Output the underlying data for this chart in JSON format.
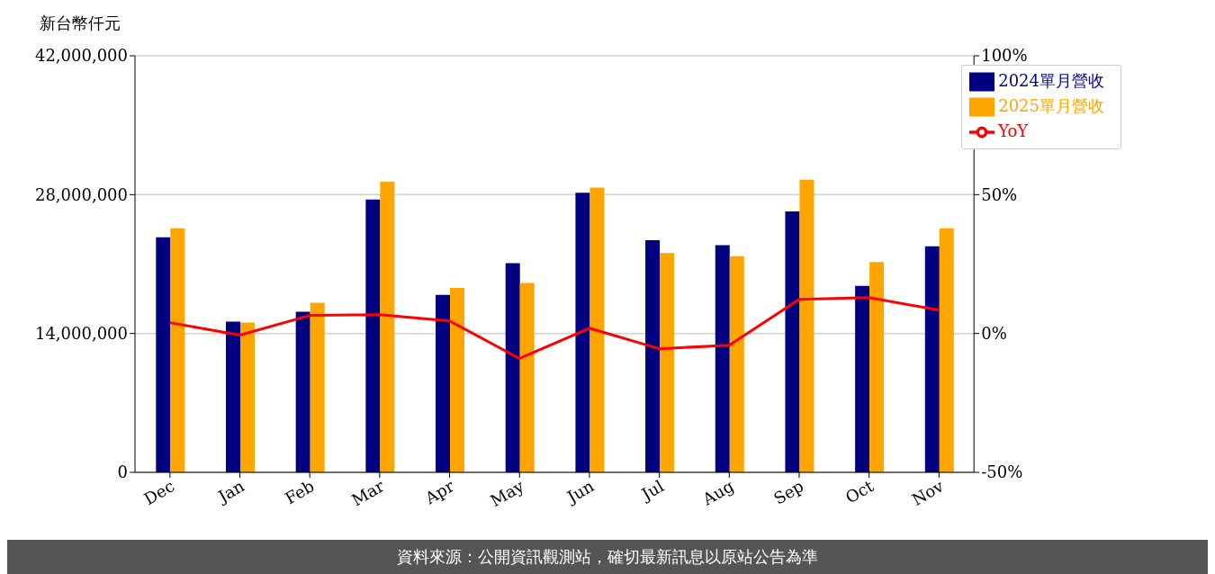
{
  "chart_data": {
    "type": "bar",
    "ylabel": "新台幣仟元",
    "categories": [
      "Dec",
      "Jan",
      "Feb",
      "Mar",
      "Apr",
      "May",
      "Jun",
      "Jul",
      "Aug",
      "Sep",
      "Oct",
      "Nov"
    ],
    "series": [
      {
        "name": "2024單月營收",
        "color": "#000080",
        "values": [
          23700000,
          15200000,
          16200000,
          27500000,
          17900000,
          21100000,
          28200000,
          23400000,
          22900000,
          26300000,
          18800000,
          22800000
        ]
      },
      {
        "name": "2025單月營收",
        "color": "#ffa500",
        "values": [
          24600000,
          15100000,
          17100000,
          29300000,
          18600000,
          19100000,
          28700000,
          22100000,
          21800000,
          29500000,
          21200000,
          24600000
        ]
      },
      {
        "name": "YoY",
        "type": "line",
        "axis": "y2",
        "color": "#ff0000",
        "line_style": "solid",
        "values": [
          3.9,
          -0.6,
          6.5,
          6.8,
          4.5,
          -9.0,
          1.9,
          -5.5,
          -4.2,
          12.3,
          12.9,
          8.4
        ]
      }
    ],
    "ylim": [
      0,
      42000000
    ],
    "yticks": [
      {
        "value": 0,
        "label": "0"
      },
      {
        "value": 14000000,
        "label": "14,000,000"
      },
      {
        "value": 28000000,
        "label": "28,000,000"
      },
      {
        "value": 42000000,
        "label": "42,000,000"
      }
    ],
    "y2lim": [
      -50,
      100
    ],
    "y2ticks": [
      {
        "value": -50,
        "label": "-50%"
      },
      {
        "value": 0,
        "label": "0%"
      },
      {
        "value": 50,
        "label": "50%"
      },
      {
        "value": 100,
        "label": "100%"
      }
    ],
    "grid": "y",
    "legend": "top right",
    "marker": "none",
    "annotations": [
      "資料來源：公開資訊觀測站，確切最新訊息以原站公告為準"
    ]
  }
}
